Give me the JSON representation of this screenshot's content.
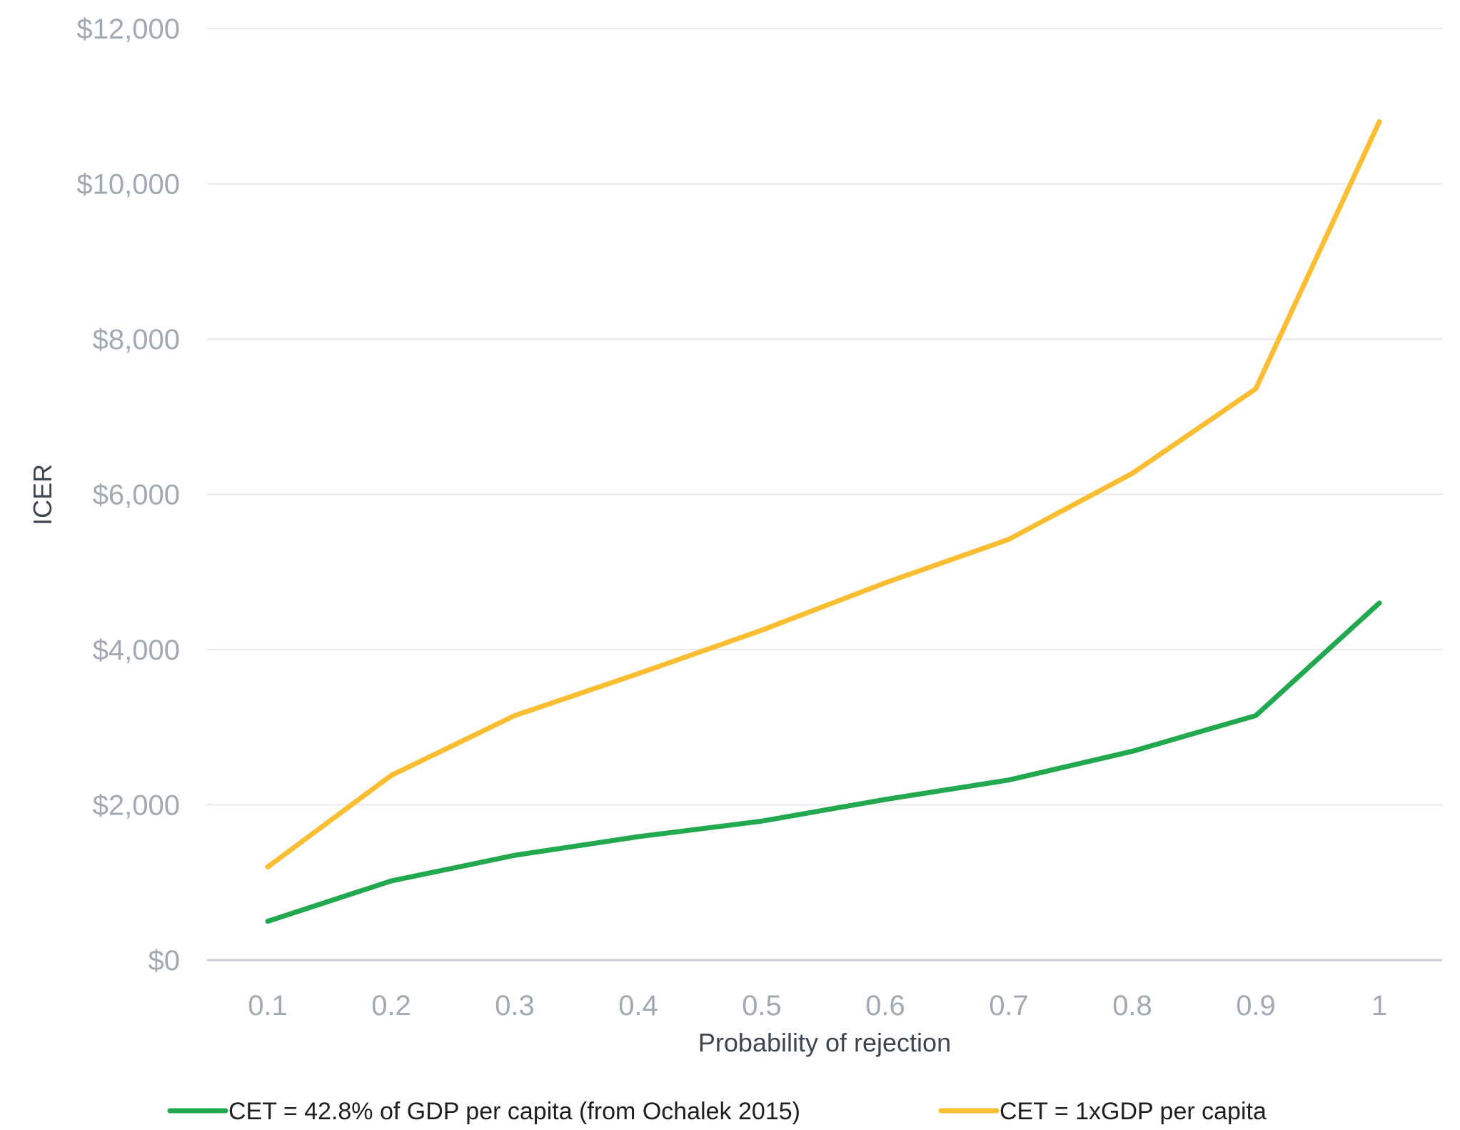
{
  "chart_data": {
    "type": "line",
    "title": "",
    "xlabel": "Probability of rejection",
    "ylabel": "ICER",
    "x": [
      0.1,
      0.2,
      0.3,
      0.4,
      0.5,
      0.6,
      0.7,
      0.8,
      0.9,
      1
    ],
    "x_tick_labels": [
      "0.1",
      "0.2",
      "0.3",
      "0.4",
      "0.5",
      "0.6",
      "0.7",
      "0.8",
      "0.9",
      "1"
    ],
    "y_ticks": [
      0,
      2000,
      4000,
      6000,
      8000,
      10000,
      12000
    ],
    "y_tick_labels": [
      "$0",
      "$2,000",
      "$4,000",
      "$6,000",
      "$8,000",
      "$10,000",
      "$12,000"
    ],
    "ylim": [
      0,
      12000
    ],
    "grid": true,
    "legend_position": "bottom",
    "series": [
      {
        "name": "CET = 42.8% of GDP per capita (from Ochalek 2015)",
        "color": "#22a84e",
        "values": [
          500,
          1020,
          1350,
          1590,
          1790,
          2070,
          2320,
          2690,
          3150,
          4600
        ]
      },
      {
        "name": "CET = 1xGDP per capita",
        "color": "#fbbd32",
        "values": [
          1200,
          2380,
          3150,
          3690,
          4250,
          4860,
          5420,
          6270,
          7360,
          10800
        ]
      }
    ]
  },
  "colors": {
    "grid": "#e6e8eb",
    "axis": "#c9ced4",
    "tick_text": "#a1a9b3",
    "axis_title": "#3d4550"
  }
}
